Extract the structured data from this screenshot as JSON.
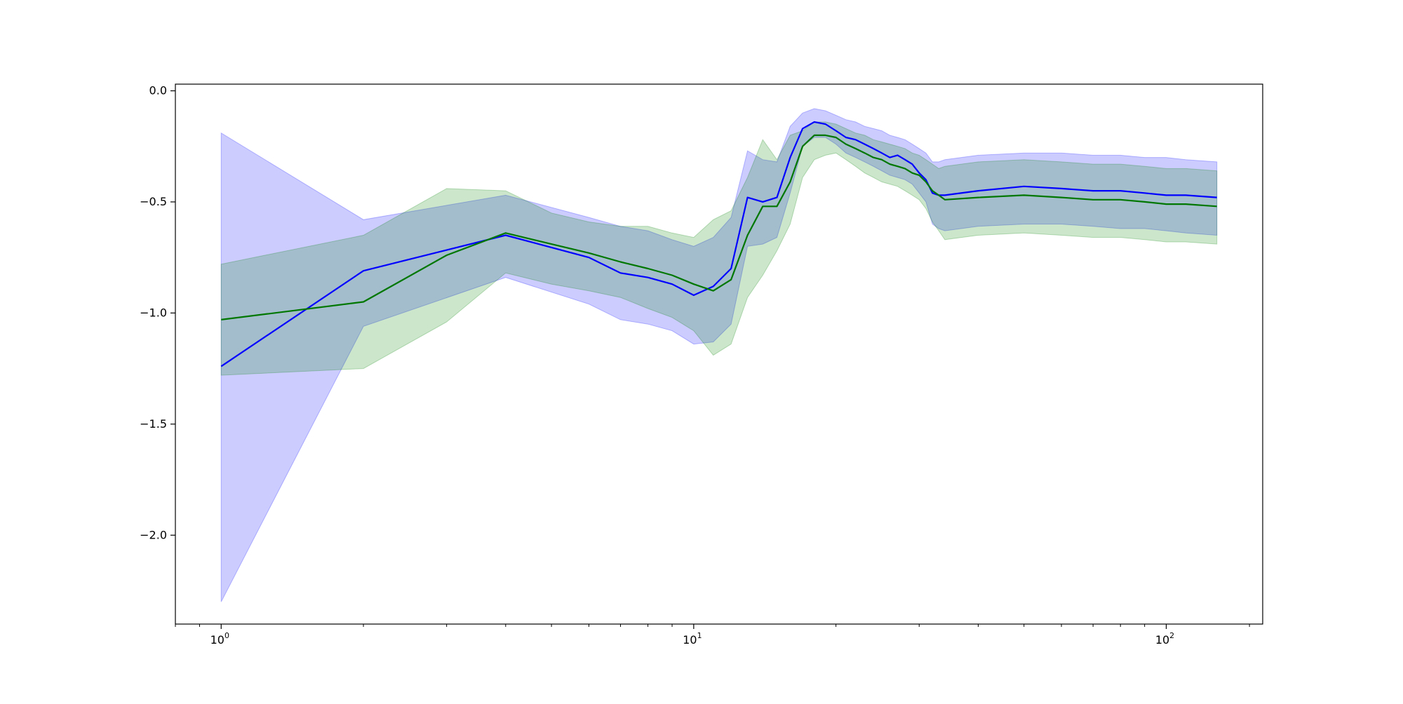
{
  "chart_data": {
    "type": "line",
    "title": "",
    "xlabel": "",
    "ylabel": "",
    "xscale": "log",
    "xlim": [
      0.8,
      160
    ],
    "ylim": [
      -2.4,
      0.03
    ],
    "grid": false,
    "legend": "none",
    "x_ticks": [
      {
        "value": 1,
        "base": "10",
        "exp": "0"
      },
      {
        "value": 10,
        "base": "10",
        "exp": "1"
      },
      {
        "value": 100,
        "base": "10",
        "exp": "2"
      }
    ],
    "y_ticks": [
      {
        "value": 0.0,
        "label": "0.0"
      },
      {
        "value": -0.5,
        "label": "−0.5"
      },
      {
        "value": -1.0,
        "label": "−1.0"
      },
      {
        "value": -1.5,
        "label": "−1.5"
      },
      {
        "value": -2.0,
        "label": "−2.0"
      }
    ],
    "series": [
      {
        "color": "#0000ff",
        "fill_color": "#0000ff",
        "fill_opacity": 0.2,
        "x": [
          1,
          2,
          4,
          6,
          7,
          8,
          9,
          10,
          11,
          12,
          13,
          14,
          15,
          16,
          17,
          18,
          19,
          20,
          21,
          22,
          23,
          24,
          25,
          26,
          27,
          28,
          29,
          30,
          31,
          32,
          33,
          34,
          40,
          50,
          60,
          70,
          80,
          90,
          100,
          110,
          128
        ],
        "y": [
          -1.24,
          -0.81,
          -0.65,
          -0.75,
          -0.82,
          -0.84,
          -0.87,
          -0.92,
          -0.88,
          -0.8,
          -0.48,
          -0.5,
          -0.48,
          -0.3,
          -0.17,
          -0.14,
          -0.15,
          -0.18,
          -0.21,
          -0.22,
          -0.24,
          -0.26,
          -0.28,
          -0.3,
          -0.29,
          -0.31,
          -0.33,
          -0.37,
          -0.4,
          -0.46,
          -0.47,
          -0.47,
          -0.45,
          -0.43,
          -0.44,
          -0.45,
          -0.45,
          -0.46,
          -0.47,
          -0.47,
          -0.48
        ],
        "upper": [
          -0.19,
          -0.58,
          -0.47,
          -0.57,
          -0.61,
          -0.63,
          -0.67,
          -0.7,
          -0.66,
          -0.57,
          -0.27,
          -0.31,
          -0.32,
          -0.16,
          -0.1,
          -0.08,
          -0.09,
          -0.11,
          -0.13,
          -0.14,
          -0.16,
          -0.17,
          -0.18,
          -0.2,
          -0.21,
          -0.22,
          -0.24,
          -0.26,
          -0.28,
          -0.32,
          -0.32,
          -0.31,
          -0.29,
          -0.28,
          -0.28,
          -0.29,
          -0.29,
          -0.3,
          -0.3,
          -0.31,
          -0.32
        ],
        "lower": [
          -2.3,
          -1.06,
          -0.84,
          -0.96,
          -1.03,
          -1.05,
          -1.08,
          -1.14,
          -1.13,
          -1.05,
          -0.7,
          -0.69,
          -0.66,
          -0.46,
          -0.25,
          -0.21,
          -0.21,
          -0.24,
          -0.28,
          -0.3,
          -0.32,
          -0.34,
          -0.36,
          -0.38,
          -0.39,
          -0.4,
          -0.42,
          -0.46,
          -0.5,
          -0.6,
          -0.62,
          -0.63,
          -0.61,
          -0.6,
          -0.6,
          -0.61,
          -0.62,
          -0.62,
          -0.63,
          -0.64,
          -0.65
        ]
      },
      {
        "color": "#007700",
        "fill_color": "#008000",
        "fill_opacity": 0.2,
        "x": [
          1,
          2,
          3,
          4,
          5,
          6,
          7,
          8,
          9,
          10,
          11,
          12,
          13,
          14,
          15,
          16,
          17,
          18,
          19,
          20,
          21,
          22,
          23,
          24,
          25,
          26,
          27,
          28,
          29,
          30,
          31,
          32,
          33,
          34,
          40,
          50,
          60,
          70,
          80,
          90,
          100,
          110,
          128
        ],
        "y": [
          -1.03,
          -0.95,
          -0.74,
          -0.64,
          -0.69,
          -0.73,
          -0.77,
          -0.8,
          -0.83,
          -0.87,
          -0.9,
          -0.85,
          -0.65,
          -0.52,
          -0.52,
          -0.41,
          -0.25,
          -0.2,
          -0.2,
          -0.21,
          -0.24,
          -0.26,
          -0.28,
          -0.3,
          -0.31,
          -0.33,
          -0.34,
          -0.35,
          -0.37,
          -0.38,
          -0.41,
          -0.45,
          -0.47,
          -0.49,
          -0.48,
          -0.47,
          -0.48,
          -0.49,
          -0.49,
          -0.5,
          -0.51,
          -0.51,
          -0.52
        ],
        "upper": [
          -0.78,
          -0.65,
          -0.44,
          -0.45,
          -0.55,
          -0.59,
          -0.61,
          -0.61,
          -0.64,
          -0.66,
          -0.58,
          -0.54,
          -0.39,
          -0.22,
          -0.31,
          -0.2,
          -0.18,
          -0.14,
          -0.14,
          -0.15,
          -0.17,
          -0.19,
          -0.2,
          -0.22,
          -0.23,
          -0.24,
          -0.25,
          -0.26,
          -0.28,
          -0.29,
          -0.31,
          -0.33,
          -0.35,
          -0.34,
          -0.32,
          -0.31,
          -0.32,
          -0.33,
          -0.33,
          -0.34,
          -0.35,
          -0.35,
          -0.36
        ],
        "lower": [
          -1.28,
          -1.25,
          -1.04,
          -0.82,
          -0.87,
          -0.9,
          -0.93,
          -0.98,
          -1.02,
          -1.08,
          -1.19,
          -1.14,
          -0.93,
          -0.83,
          -0.72,
          -0.6,
          -0.39,
          -0.31,
          -0.29,
          -0.28,
          -0.31,
          -0.34,
          -0.37,
          -0.39,
          -0.41,
          -0.42,
          -0.43,
          -0.45,
          -0.47,
          -0.49,
          -0.53,
          -0.59,
          -0.63,
          -0.67,
          -0.65,
          -0.64,
          -0.65,
          -0.66,
          -0.66,
          -0.67,
          -0.68,
          -0.68,
          -0.69
        ]
      }
    ]
  }
}
